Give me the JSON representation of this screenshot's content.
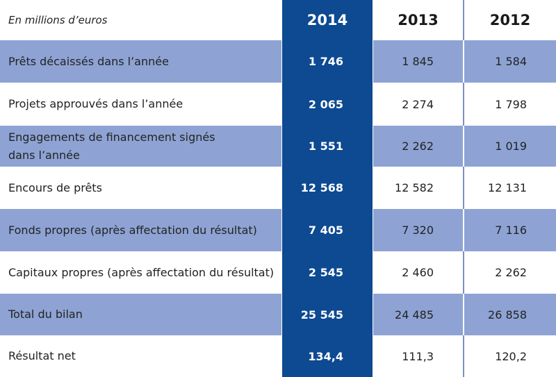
{
  "table": {
    "caption": "En millions d’euros",
    "years": [
      "2014",
      "2013",
      "2012"
    ],
    "rows": [
      {
        "label": "Prêts décaissés dans l’année",
        "v2014": "1 746",
        "v2013": "1 845",
        "v2012": "1 584"
      },
      {
        "label": "Projets approuvés dans l’année",
        "v2014": "2 065",
        "v2013": "2 274",
        "v2012": "1 798"
      },
      {
        "label": "Engagements de financement signés dans l’année",
        "v2014": "1 551",
        "v2013": "2 262",
        "v2012": "1 019"
      },
      {
        "label": "Encours de prêts",
        "v2014": "12 568",
        "v2013": "12 582",
        "v2012": "12 131"
      },
      {
        "label": "Fonds propres (après affectation du résultat)",
        "v2014": "7 405",
        "v2013": "7 320",
        "v2012": "7 116"
      },
      {
        "label": "Capitaux propres (après affectation du résultat)",
        "v2014": "2 545",
        "v2013": "2 460",
        "v2012": "2 262"
      },
      {
        "label": "Total du bilan",
        "v2014": "25 545",
        "v2013": "24 485",
        "v2012": "26 858"
      },
      {
        "label": "Résultat net",
        "v2014": "134,4",
        "v2013": "111,3",
        "v2012": "120,2"
      }
    ]
  },
  "colors": {
    "highlight_column": "#0d4a92",
    "shaded_row": "#8ea3d4",
    "background": "#ffffff"
  }
}
